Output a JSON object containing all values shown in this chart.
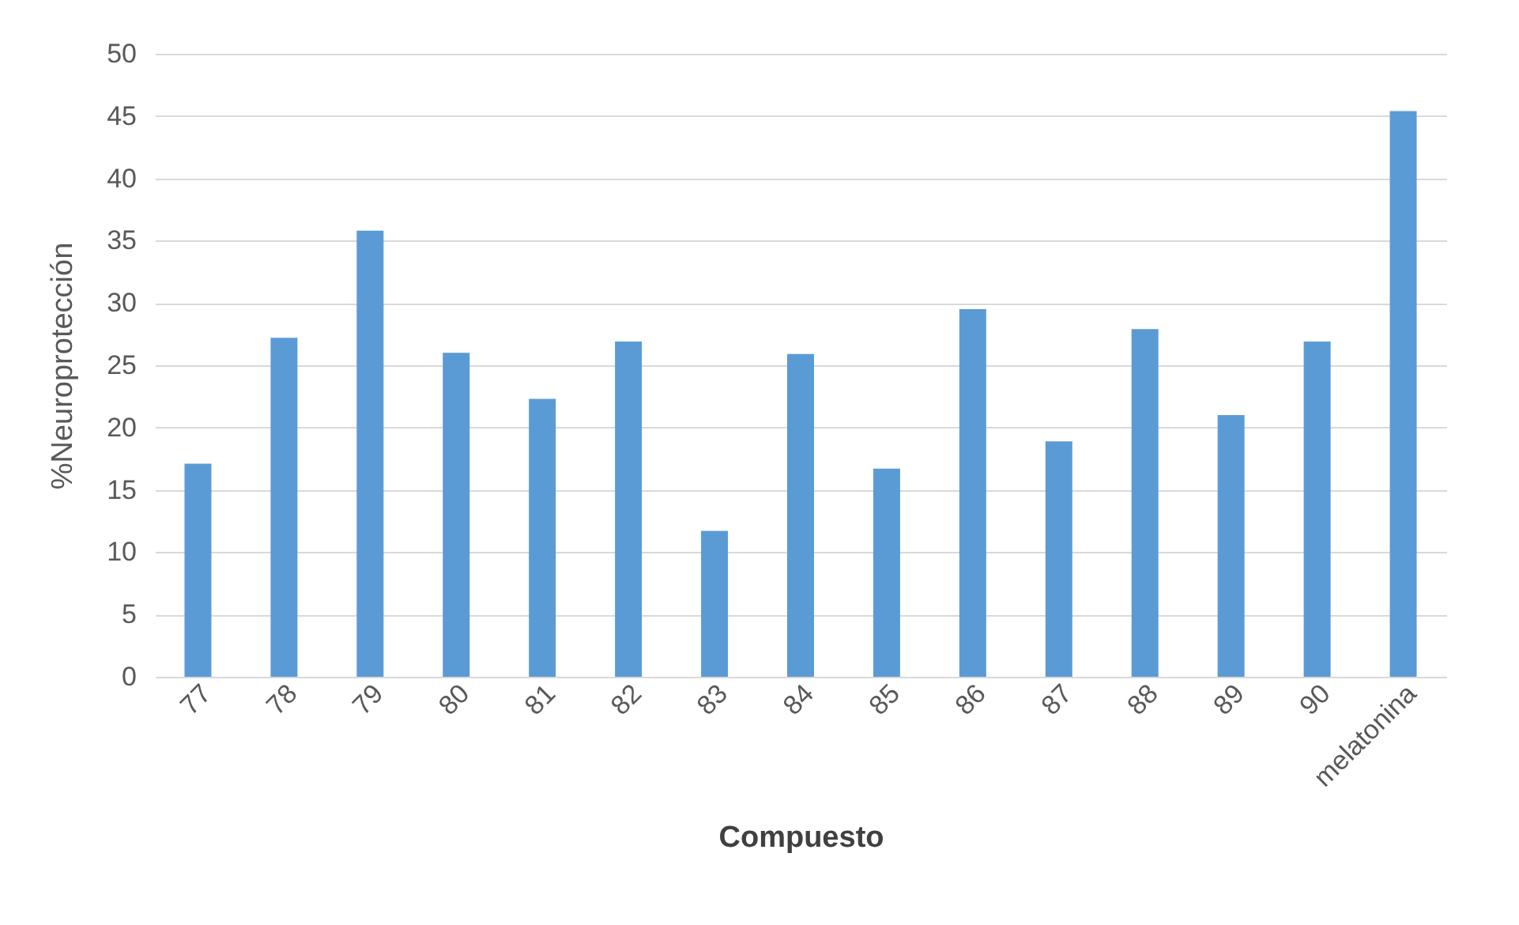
{
  "chart_data": {
    "type": "bar",
    "xlabel": "Compuesto",
    "ylabel": "%Neuroprotección",
    "categories": [
      "77",
      "78",
      "79",
      "80",
      "81",
      "82",
      "83",
      "84",
      "85",
      "86",
      "87",
      "88",
      "89",
      "90",
      "melatonina"
    ],
    "values": [
      17.1,
      27.2,
      35.8,
      26.0,
      22.3,
      26.9,
      11.7,
      25.9,
      16.7,
      29.5,
      18.9,
      27.9,
      21.0,
      26.9,
      45.4
    ],
    "color": "#5b9bd5",
    "ylim": [
      0,
      50
    ],
    "yticks": [
      0,
      5,
      10,
      15,
      20,
      25,
      30,
      35,
      40,
      45,
      50
    ],
    "grid": "y"
  }
}
